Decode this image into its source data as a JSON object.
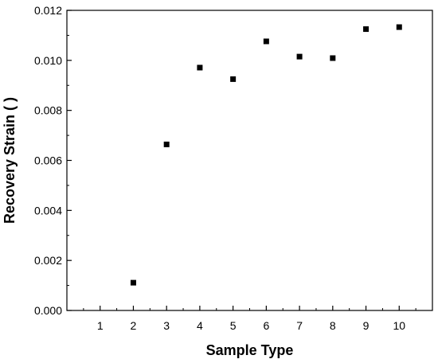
{
  "chart_data": {
    "type": "scatter",
    "title": "",
    "xlabel": "Sample Type",
    "ylabel": "Recovery Strain ( )",
    "xlim": [
      0,
      11
    ],
    "ylim": [
      0,
      0.012
    ],
    "x_ticks": [
      1,
      2,
      3,
      4,
      5,
      6,
      7,
      8,
      9,
      10
    ],
    "y_ticks": [
      "0.000",
      "0.002",
      "0.004",
      "0.006",
      "0.008",
      "0.010",
      "0.012"
    ],
    "grid": false,
    "legend": "none",
    "marker": "square",
    "marker_color": "#000000",
    "series": [
      {
        "x": [
          2,
          3,
          4,
          5,
          6,
          7,
          8,
          9,
          10
        ],
        "y": [
          0.00111,
          0.00664,
          0.00971,
          0.00925,
          0.01076,
          0.01015,
          0.01009,
          0.01125,
          0.01133
        ]
      }
    ]
  }
}
